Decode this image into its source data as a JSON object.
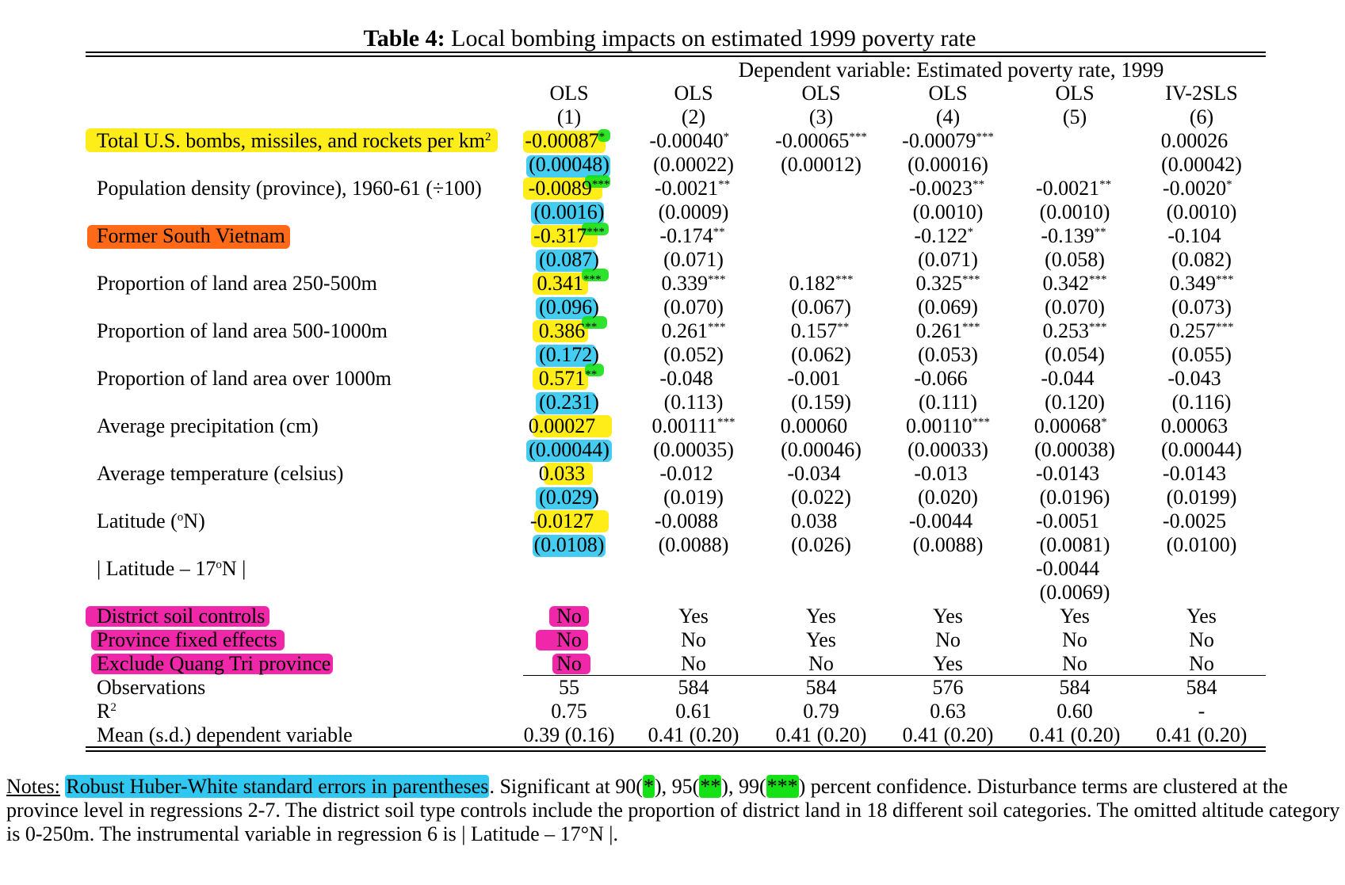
{
  "title": {
    "bold": "Table 4:",
    "rest": " Local bombing impacts on estimated 1999 poverty rate"
  },
  "dependent_variable": "Dependent variable: Estimated poverty rate, 1999",
  "columns": [
    {
      "method": "OLS",
      "num": "(1)"
    },
    {
      "method": "OLS",
      "num": "(2)"
    },
    {
      "method": "OLS",
      "num": "(3)"
    },
    {
      "method": "OLS",
      "num": "(4)"
    },
    {
      "method": "OLS",
      "num": "(5)"
    },
    {
      "method": "IV-2SLS",
      "num": "(6)"
    }
  ],
  "rows": [
    {
      "label": "Total U.S. bombs, missiles, and rockets per km",
      "label_sup": "2",
      "coef": [
        {
          "v": "-0.00087",
          "s": "*"
        },
        {
          "v": "-0.00040",
          "s": "*"
        },
        {
          "v": "-0.00065",
          "s": "***"
        },
        {
          "v": "-0.00079",
          "s": "***"
        },
        {
          "v": "",
          "s": ""
        },
        {
          "v": "0.00026",
          "s": ""
        }
      ],
      "se": [
        "(0.00048)",
        "(0.00022)",
        "(0.00012)",
        "(0.00016)",
        "",
        "(0.00042)"
      ]
    },
    {
      "label": "Population density (province), 1960-61 (÷100)",
      "coef": [
        {
          "v": "-0.0089",
          "s": "***"
        },
        {
          "v": "-0.0021",
          "s": "**"
        },
        {
          "v": "",
          "s": ""
        },
        {
          "v": "-0.0023",
          "s": "**"
        },
        {
          "v": "-0.0021",
          "s": "**"
        },
        {
          "v": "-0.0020",
          "s": "*"
        }
      ],
      "se": [
        "(0.0016)",
        "(0.0009)",
        "",
        "(0.0010)",
        "(0.0010)",
        "(0.0010)"
      ]
    },
    {
      "label": "Former South Vietnam",
      "coef": [
        {
          "v": "-0.317",
          "s": "***"
        },
        {
          "v": "-0.174",
          "s": "**"
        },
        {
          "v": "",
          "s": ""
        },
        {
          "v": "-0.122",
          "s": "*"
        },
        {
          "v": "-0.139",
          "s": "**"
        },
        {
          "v": "-0.104",
          "s": ""
        }
      ],
      "se": [
        "(0.087)",
        "(0.071)",
        "",
        "(0.071)",
        "(0.058)",
        "(0.082)"
      ]
    },
    {
      "label": "Proportion of land area 250-500m",
      "coef": [
        {
          "v": "0.341",
          "s": "***"
        },
        {
          "v": "0.339",
          "s": "***"
        },
        {
          "v": "0.182",
          "s": "***"
        },
        {
          "v": "0.325",
          "s": "***"
        },
        {
          "v": "0.342",
          "s": "***"
        },
        {
          "v": "0.349",
          "s": "***"
        }
      ],
      "se": [
        "(0.096)",
        "(0.070)",
        "(0.067)",
        "(0.069)",
        "(0.070)",
        "(0.073)"
      ]
    },
    {
      "label": "Proportion of land area 500-1000m",
      "coef": [
        {
          "v": "0.386",
          "s": "**"
        },
        {
          "v": "0.261",
          "s": "***"
        },
        {
          "v": "0.157",
          "s": "**"
        },
        {
          "v": "0.261",
          "s": "***"
        },
        {
          "v": "0.253",
          "s": "***"
        },
        {
          "v": "0.257",
          "s": "***"
        }
      ],
      "se": [
        "(0.172)",
        "(0.052)",
        "(0.062)",
        "(0.053)",
        "(0.054)",
        "(0.055)"
      ]
    },
    {
      "label": "Proportion of land area over 1000m",
      "coef": [
        {
          "v": "0.571",
          "s": "**"
        },
        {
          "v": "-0.048",
          "s": ""
        },
        {
          "v": "-0.001",
          "s": ""
        },
        {
          "v": "-0.066",
          "s": ""
        },
        {
          "v": "-0.044",
          "s": ""
        },
        {
          "v": "-0.043",
          "s": ""
        }
      ],
      "se": [
        "(0.231)",
        "(0.113)",
        "(0.159)",
        "(0.111)",
        "(0.120)",
        "(0.116)"
      ]
    },
    {
      "label": "Average precipitation (cm)",
      "coef": [
        {
          "v": "0.00027",
          "s": ""
        },
        {
          "v": "0.00111",
          "s": "***"
        },
        {
          "v": "0.00060",
          "s": ""
        },
        {
          "v": "0.00110",
          "s": "***"
        },
        {
          "v": "0.00068",
          "s": "*"
        },
        {
          "v": "0.00063",
          "s": ""
        }
      ],
      "se": [
        "(0.00044)",
        "(0.00035)",
        "(0.00046)",
        "(0.00033)",
        "(0.00038)",
        "(0.00044)"
      ]
    },
    {
      "label": "Average temperature (celsius)",
      "coef": [
        {
          "v": "0.033",
          "s": ""
        },
        {
          "v": "-0.012",
          "s": ""
        },
        {
          "v": "-0.034",
          "s": ""
        },
        {
          "v": "-0.013",
          "s": ""
        },
        {
          "v": "-0.0143",
          "s": ""
        },
        {
          "v": "-0.0143",
          "s": ""
        }
      ],
      "se": [
        "(0.029)",
        "(0.019)",
        "(0.022)",
        "(0.020)",
        "(0.0196)",
        "(0.0199)"
      ]
    },
    {
      "label": "Latitude (",
      "label_sup": "o",
      "label_after": "N)",
      "coef": [
        {
          "v": "-0.0127",
          "s": ""
        },
        {
          "v": "-0.0088",
          "s": ""
        },
        {
          "v": "0.038",
          "s": ""
        },
        {
          "v": "-0.0044",
          "s": ""
        },
        {
          "v": "-0.0051",
          "s": ""
        },
        {
          "v": "-0.0025",
          "s": ""
        }
      ],
      "se": [
        "(0.0108)",
        "(0.0088)",
        "(0.026)",
        "(0.0088)",
        "(0.0081)",
        "(0.0100)"
      ]
    },
    {
      "label": "| Latitude – 17",
      "label_sup": "o",
      "label_after": "N |",
      "coef": [
        {
          "v": "",
          "s": ""
        },
        {
          "v": "",
          "s": ""
        },
        {
          "v": "",
          "s": ""
        },
        {
          "v": "",
          "s": ""
        },
        {
          "v": "-0.0044",
          "s": ""
        },
        {
          "v": "",
          "s": ""
        }
      ],
      "se": [
        "",
        "",
        "",
        "",
        "(0.0069)",
        ""
      ]
    }
  ],
  "controls": [
    {
      "label": "District soil controls",
      "values": [
        "No",
        "Yes",
        "Yes",
        "Yes",
        "Yes",
        "Yes"
      ]
    },
    {
      "label": "Province fixed effects",
      "values": [
        "No",
        "No",
        "Yes",
        "No",
        "No",
        "No"
      ]
    },
    {
      "label": "Exclude Quang Tri province",
      "values": [
        "No",
        "No",
        "No",
        "Yes",
        "No",
        "No"
      ]
    }
  ],
  "stats": [
    {
      "label": "Observations",
      "values": [
        "55",
        "584",
        "584",
        "576",
        "584",
        "584"
      ]
    },
    {
      "label": "R",
      "label_sup": "2",
      "values": [
        "0.75",
        "0.61",
        "0.79",
        "0.63",
        "0.60",
        "-"
      ]
    },
    {
      "label": "Mean (s.d.) dependent variable",
      "values": [
        "0.39 (0.16)",
        "0.41 (0.20)",
        "0.41 (0.20)",
        "0.41 (0.20)",
        "0.41 (0.20)",
        "0.41 (0.20)"
      ]
    }
  ],
  "notes": {
    "prefix": "Notes:",
    "highlighted": "Robust Huber-White standard errors in parentheses",
    "sig_a": ". Significant at 90(",
    "star1": "*",
    "sig_b": "), 95(",
    "star2": "**",
    "sig_c": "), 99(",
    "star3": "***",
    "sig_d": ") percent confidence. Disturbance terms are clustered at the",
    "line2": "province level in regressions 2-7. The district soil type controls include the proportion of district land in 18 different soil categories. The omitted altitude category",
    "line3": "is 0-250m. The instrumental variable in regression 6 is | Latitude – 17°N |."
  },
  "highlight_colors": {
    "yellow": "#ffeb00",
    "blue": "#30c8f0",
    "green": "#16e016",
    "orange": "#ff5a00",
    "pink": "#ee10a0"
  }
}
